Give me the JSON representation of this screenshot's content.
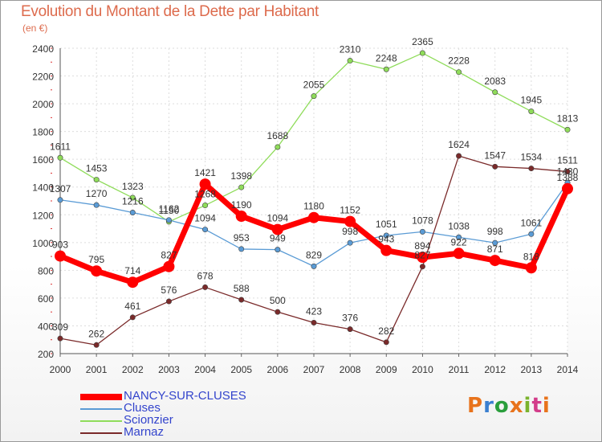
{
  "header": {
    "title": "Evolution du Montant de la Dette par Habitant",
    "subtitle": "(en €)"
  },
  "logo": {
    "text": "Proxiti",
    "colors": [
      "#e8731c",
      "#3a7fd0",
      "#2a9e3c",
      "#e8731c",
      "#7bb32e",
      "#d33c8a",
      "#e8731c"
    ]
  },
  "chart_data": {
    "type": "line",
    "title": "Evolution du Montant de la Dette par Habitant",
    "subtitle": "(en €)",
    "xlabel": "",
    "ylabel": "",
    "x": [
      "2000",
      "2001",
      "2002",
      "2003",
      "2004",
      "2005",
      "2006",
      "2007",
      "2008",
      "2009",
      "2010",
      "2011",
      "2012",
      "2013",
      "2014"
    ],
    "ylim": [
      200,
      2400
    ],
    "yticks": [
      200,
      400,
      600,
      800,
      1000,
      1200,
      1400,
      1600,
      1800,
      2000,
      2200,
      2400
    ],
    "grid": true,
    "legend_position": "bottom-left",
    "series": [
      {
        "name": "NANCY-SUR-CLUSES",
        "color": "#ff0000",
        "values": [
          903,
          795,
          714,
          827,
          1421,
          1190,
          1094,
          1180,
          1152,
          943,
          894,
          922,
          871,
          818,
          1388
        ]
      },
      {
        "name": "Cluses",
        "color": "#5a9bd5",
        "values": [
          1307,
          1270,
          1216,
          1162,
          1094,
          953,
          949,
          829,
          998,
          1051,
          1078,
          1038,
          998,
          1061,
          1430
        ]
      },
      {
        "name": "Scionzier",
        "color": "#8fdc5a",
        "values": [
          1611,
          1453,
          1323,
          1150,
          1268,
          1398,
          1688,
          2055,
          2310,
          2248,
          2365,
          2228,
          2083,
          1945,
          1813
        ]
      },
      {
        "name": "Marnaz",
        "color": "#7a2a2a",
        "values": [
          309,
          262,
          461,
          576,
          678,
          588,
          500,
          423,
          376,
          282,
          827,
          1624,
          1547,
          1534,
          1511
        ]
      }
    ]
  }
}
